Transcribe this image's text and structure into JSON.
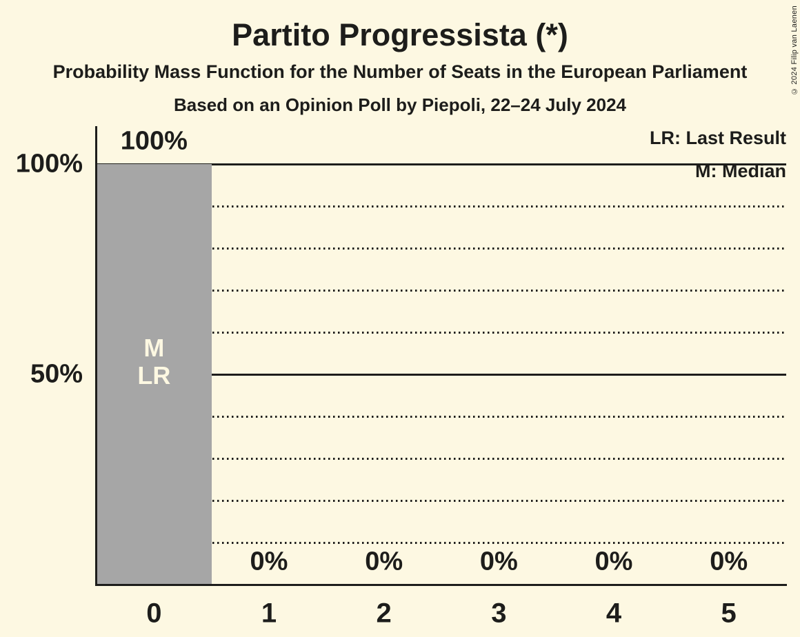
{
  "header": {
    "title": "Partito Progressista (*)",
    "subtitle1": "Probability Mass Function for the Number of Seats in the European Parliament",
    "subtitle2": "Based on an Opinion Poll by Piepoli, 22–24 July 2024"
  },
  "legend": {
    "line1": "LR: Last Result",
    "line2": "M: Median"
  },
  "copyright": "© 2024 Filip van Laenen",
  "colors": {
    "background": "#FDF8E2",
    "bar": "#A6A6A6",
    "text": "#1D1D1B",
    "bar_label_text": "#FDF8E2",
    "gridline": "#1D1D1B"
  },
  "chart_data": {
    "type": "bar",
    "title": "Partito Progressista (*)",
    "subtitle": "Probability Mass Function for the Number of Seats in the European Parliament",
    "source_line": "Based on an Opinion Poll by Piepoli, 22–24 July 2024",
    "categories": [
      "0",
      "1",
      "2",
      "3",
      "4",
      "5"
    ],
    "values": [
      100,
      0,
      0,
      0,
      0,
      0
    ],
    "value_labels": [
      "100%",
      "0%",
      "0%",
      "0%",
      "0%",
      "0%"
    ],
    "ylim": [
      0,
      100
    ],
    "yticks": [
      {
        "value": 100,
        "label": "100%"
      },
      {
        "value": 50,
        "label": "50%"
      }
    ],
    "solid_gridlines": [
      100,
      50
    ],
    "dotted_gridlines": [
      90,
      80,
      70,
      60,
      40,
      30,
      20,
      10
    ],
    "grid": "horizontal",
    "legend_position": "top-right",
    "legend_entries": [
      "LR: Last Result",
      "M: Median"
    ],
    "bar_annotations": [
      {
        "category_index": 0,
        "lines": [
          "M",
          "LR"
        ]
      }
    ]
  }
}
